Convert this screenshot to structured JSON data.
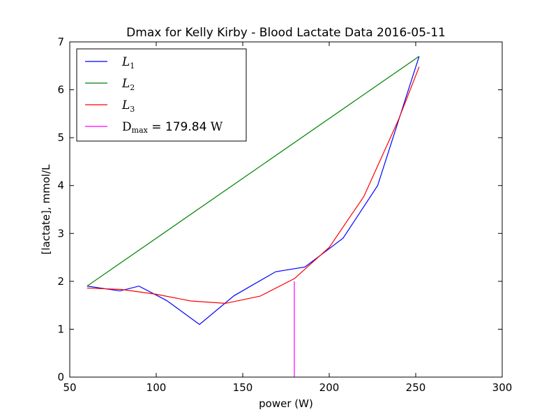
{
  "chart_data": {
    "type": "line",
    "title": "Dmax for Kelly Kirby - Blood Lactate Data 2016-05-11",
    "xlabel": "power (W)",
    "ylabel": "[lactate], mmol/L",
    "xlim": [
      50,
      300
    ],
    "ylim": [
      0,
      7
    ],
    "xticks": [
      "50",
      "100",
      "150",
      "200",
      "250",
      "300"
    ],
    "yticks": [
      "0",
      "1",
      "2",
      "3",
      "4",
      "5",
      "6",
      "7"
    ],
    "grid": false,
    "legend_position": "top-left",
    "series": [
      {
        "name": "L1",
        "label_main": "L",
        "label_sub": "1",
        "color": "#0000ff",
        "x": [
          60,
          79,
          90,
          106,
          125,
          145,
          169,
          186,
          208,
          228,
          252
        ],
        "y": [
          1.9,
          1.8,
          1.9,
          1.6,
          1.1,
          1.7,
          2.2,
          2.3,
          2.9,
          4.0,
          6.7
        ]
      },
      {
        "name": "L2",
        "label_main": "L",
        "label_sub": "2",
        "color": "#008000",
        "x": [
          60,
          252
        ],
        "y": [
          1.9,
          6.7
        ]
      },
      {
        "name": "L3",
        "label_main": "L",
        "label_sub": "3",
        "color": "#ff0000",
        "x": [
          60,
          80,
          100,
          120,
          140,
          160,
          180,
          200,
          220,
          240,
          252
        ],
        "y": [
          1.86,
          1.83,
          1.73,
          1.59,
          1.54,
          1.69,
          2.06,
          2.71,
          3.77,
          5.37,
          6.48
        ]
      },
      {
        "name": "Dmax",
        "label_main": "D",
        "label_sub": "max",
        "label_value": "= 179.84",
        "label_unit": "W",
        "color": "#ff00ff",
        "x": [
          179.84,
          179.84
        ],
        "y": [
          0,
          2.0
        ]
      }
    ]
  }
}
